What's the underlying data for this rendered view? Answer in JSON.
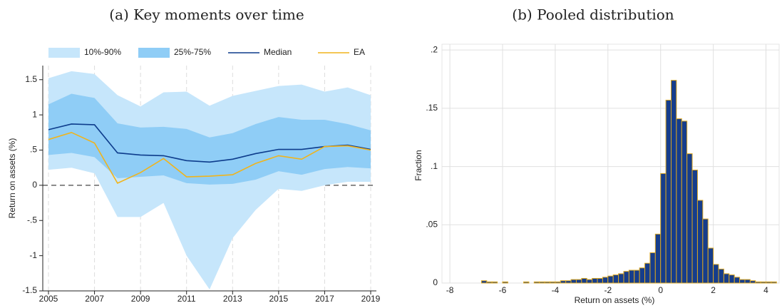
{
  "chart_data": [
    {
      "type": "area",
      "title": "(a) Key moments over time",
      "y_label": "Return on assets (%)",
      "x": [
        2005,
        2006,
        2007,
        2008,
        2009,
        2010,
        2011,
        2012,
        2013,
        2014,
        2015,
        2016,
        2017,
        2018,
        2019
      ],
      "xlim": [
        2005,
        2019
      ],
      "xticks": [
        2005,
        2007,
        2009,
        2011,
        2013,
        2015,
        2017,
        2019
      ],
      "ylim": [
        -1.5,
        1.7
      ],
      "yticks": [
        {
          "value": -1.5,
          "label": "-1.5"
        },
        -1,
        {
          "value": -0.5,
          "label": "-.5"
        },
        0,
        {
          "value": 0.5,
          "label": ".5"
        },
        1,
        1.5
      ],
      "grid": true,
      "reference_line": 0,
      "legend": "top",
      "series": [
        {
          "name": "10%-90%",
          "color": "#c6e6fb",
          "kind": "band",
          "lower": [
            0.22,
            0.25,
            0.17,
            -0.45,
            -0.45,
            -0.25,
            -1.0,
            -1.48,
            -0.75,
            -0.35,
            -0.05,
            -0.08,
            0.0,
            0.05,
            0.05
          ],
          "upper": [
            1.52,
            1.62,
            1.58,
            1.28,
            1.12,
            1.32,
            1.33,
            1.13,
            1.27,
            1.34,
            1.41,
            1.43,
            1.33,
            1.39,
            1.28
          ]
        },
        {
          "name": "25%-75%",
          "color": "#8fcdf6",
          "kind": "band",
          "lower": [
            0.43,
            0.46,
            0.4,
            0.1,
            0.12,
            0.14,
            0.03,
            0.01,
            0.02,
            0.08,
            0.2,
            0.15,
            0.23,
            0.26,
            0.24
          ],
          "upper": [
            1.15,
            1.3,
            1.24,
            0.88,
            0.82,
            0.83,
            0.8,
            0.68,
            0.74,
            0.87,
            0.97,
            0.93,
            0.93,
            0.87,
            0.78
          ]
        },
        {
          "name": "Median",
          "color": "#0d3c8c",
          "kind": "line",
          "values": [
            0.79,
            0.87,
            0.86,
            0.46,
            0.43,
            0.42,
            0.35,
            0.33,
            0.37,
            0.45,
            0.51,
            0.51,
            0.55,
            0.57,
            0.51
          ]
        },
        {
          "name": "EA",
          "color": "#f0b41c",
          "kind": "line",
          "values": [
            0.65,
            0.75,
            0.6,
            0.03,
            0.18,
            0.38,
            0.12,
            0.13,
            0.15,
            0.31,
            0.42,
            0.37,
            0.55,
            0.56,
            0.5
          ]
        }
      ]
    },
    {
      "type": "histogram",
      "title": "(b) Pooled distribution",
      "x_label": "Return on assets (%)",
      "y_label": "Fraction",
      "color": "#163d8b",
      "edge_color": "#d9a520",
      "grid": true,
      "xlim": [
        -8.3,
        4.5
      ],
      "xticks": [
        -8,
        -6,
        -4,
        -2,
        0,
        2,
        4
      ],
      "ylim": [
        0,
        0.205
      ],
      "yticks": [
        0,
        {
          "value": 0.05,
          "label": ".05"
        },
        {
          "value": 0.1,
          "label": ".1"
        },
        {
          "value": 0.15,
          "label": ".15"
        },
        {
          "value": 0.2,
          "label": ".2"
        }
      ],
      "bins": [
        -7,
        -6.8,
        -6.6,
        -6.4,
        -6.2,
        -6,
        -5.8,
        -5.6,
        -5.4,
        -5.2,
        -5,
        -4.8,
        -4.6,
        -4.4,
        -4.2,
        -4,
        -3.8,
        -3.6,
        -3.4,
        -3.2,
        -3,
        -2.8,
        -2.6,
        -2.4,
        -2.2,
        -2,
        -1.8,
        -1.6,
        -1.4,
        -1.2,
        -1,
        -0.8,
        -0.6,
        -0.4,
        -0.2,
        0,
        0.2,
        0.4,
        0.6,
        0.8,
        1,
        1.2,
        1.4,
        1.6,
        1.8,
        2,
        2.2,
        2.4,
        2.6,
        2.8,
        3,
        3.2,
        3.4,
        3.6,
        3.8,
        4,
        4.2,
        4.4
      ],
      "values": [
        0,
        0.002,
        0.001,
        0.001,
        0,
        0.001,
        0,
        0,
        0,
        0.001,
        0,
        0.001,
        0.001,
        0.001,
        0.001,
        0.001,
        0.002,
        0.002,
        0.003,
        0.003,
        0.004,
        0.003,
        0.004,
        0.004,
        0.005,
        0.006,
        0.007,
        0.008,
        0.01,
        0.011,
        0.011,
        0.013,
        0.017,
        0.026,
        0.042,
        0.094,
        0.157,
        0.174,
        0.141,
        0.139,
        0.111,
        0.097,
        0.071,
        0.055,
        0.03,
        0.016,
        0.012,
        0.008,
        0.007,
        0.005,
        0.003,
        0.003,
        0.002,
        0.001,
        0.001,
        0.001,
        0.001
      ]
    }
  ]
}
